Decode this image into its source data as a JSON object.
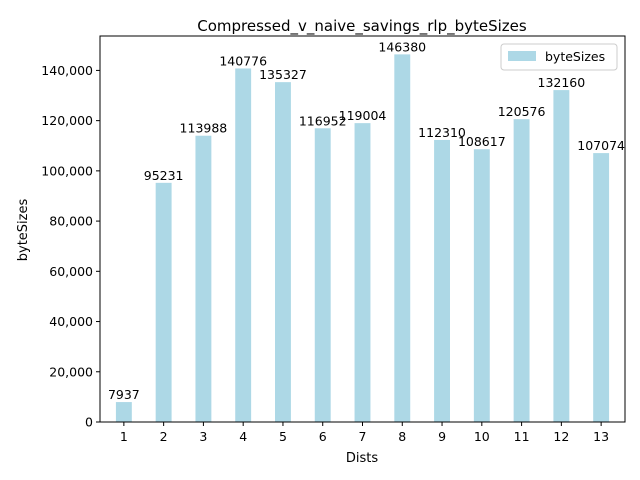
{
  "chart_data": {
    "type": "bar",
    "title": "Compressed_v_naive_savings_rlp_byteSizes",
    "xlabel": "Dists",
    "ylabel": "byteSizes",
    "categories": [
      "1",
      "2",
      "3",
      "4",
      "5",
      "6",
      "7",
      "8",
      "9",
      "10",
      "11",
      "12",
      "13"
    ],
    "series": [
      {
        "name": "byteSizes",
        "color": "#add8e6",
        "values": [
          7937,
          95231,
          113988,
          140776,
          135327,
          116952,
          119004,
          146380,
          112310,
          108617,
          120576,
          132160,
          107074
        ]
      }
    ],
    "ylim": [
      0,
      153700
    ],
    "yticks": [
      0,
      20000,
      40000,
      60000,
      80000,
      100000,
      120000,
      140000
    ],
    "ytick_labels": [
      "0",
      "20,000",
      "40,000",
      "60,000",
      "80,000",
      "100,000",
      "120,000",
      "140,000"
    ],
    "legend": "top-right",
    "grid": false
  }
}
